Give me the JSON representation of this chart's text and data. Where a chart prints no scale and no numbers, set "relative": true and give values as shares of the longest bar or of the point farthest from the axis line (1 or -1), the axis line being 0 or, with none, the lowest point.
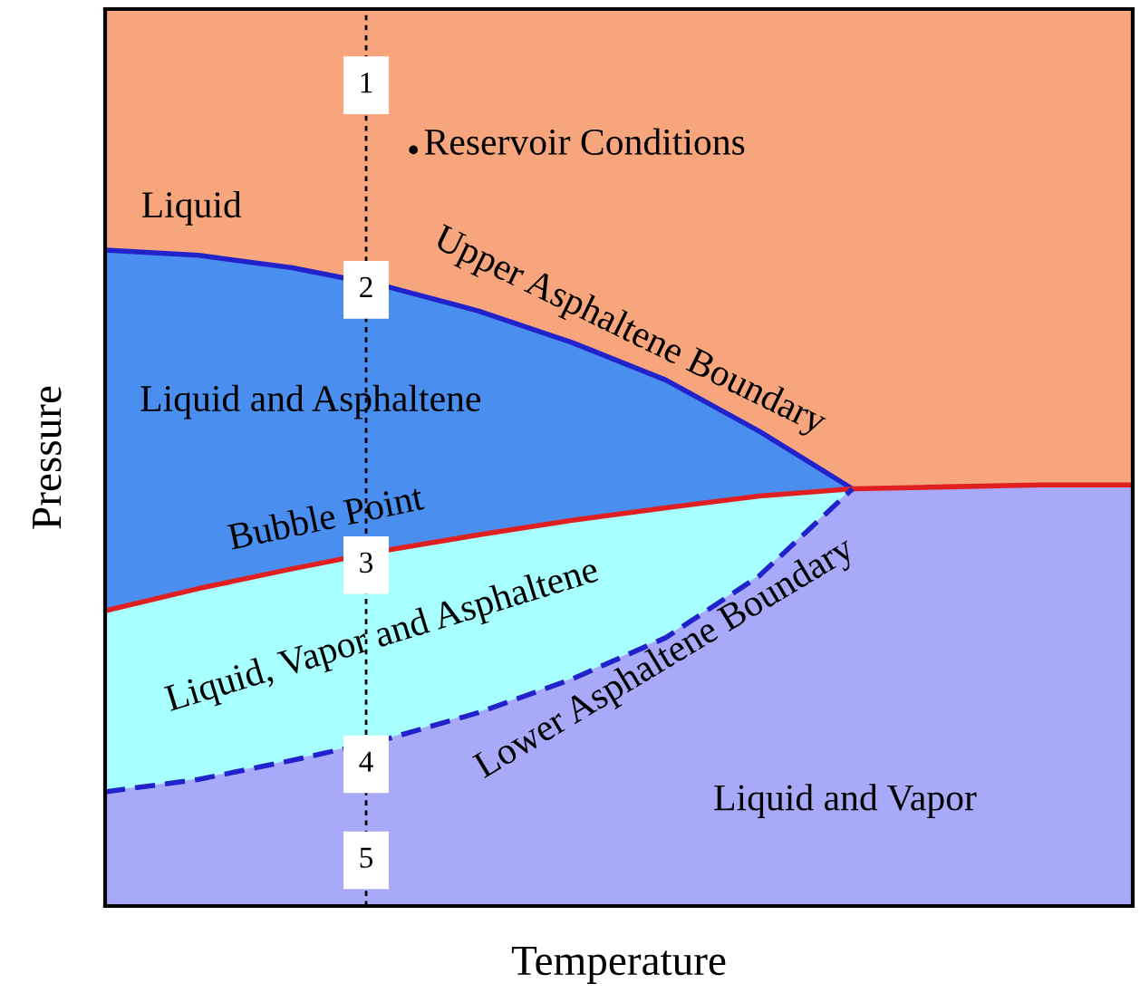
{
  "chart_data": {
    "type": "line",
    "relative": true,
    "xlabel": "Temperature",
    "ylabel": "Pressure",
    "categories": [
      null,
      null,
      null,
      null,
      null,
      null,
      null,
      null,
      null,
      null,
      null,
      null
    ],
    "series": [
      {
        "color": "#2222cc",
        "line_style": "solid",
        "values": [
          1,
          0.992,
          0.973,
          0.945,
          0.907,
          0.859,
          0.802,
          0.724,
          0.636,
          null,
          null,
          null
        ]
      },
      {
        "color": "#e02020",
        "line_style": "solid",
        "values": [
          0.45,
          0.484,
          0.514,
          0.542,
          0.566,
          0.588,
          0.607,
          0.625,
          0.636,
          0.639,
          0.642,
          0.642
        ]
      },
      {
        "color": "#2222cc",
        "line_style": "dashed",
        "values": [
          0.174,
          0.193,
          0.222,
          0.254,
          0.295,
          0.346,
          0.409,
          0.503,
          0.636,
          null,
          null,
          null
        ]
      }
    ],
    "annotations": [
      "Liquid",
      "Reservoir Conditions",
      "Upper Asphaltene Boundary",
      "Liquid and Asphaltene",
      "Bubble Point",
      "Liquid, Vapor and Asphaltene",
      "Lower Asphaltene Boundary",
      "Liquid and Vapor",
      "1",
      "2",
      "3",
      "4",
      "5"
    ],
    "grid": false
  }
}
